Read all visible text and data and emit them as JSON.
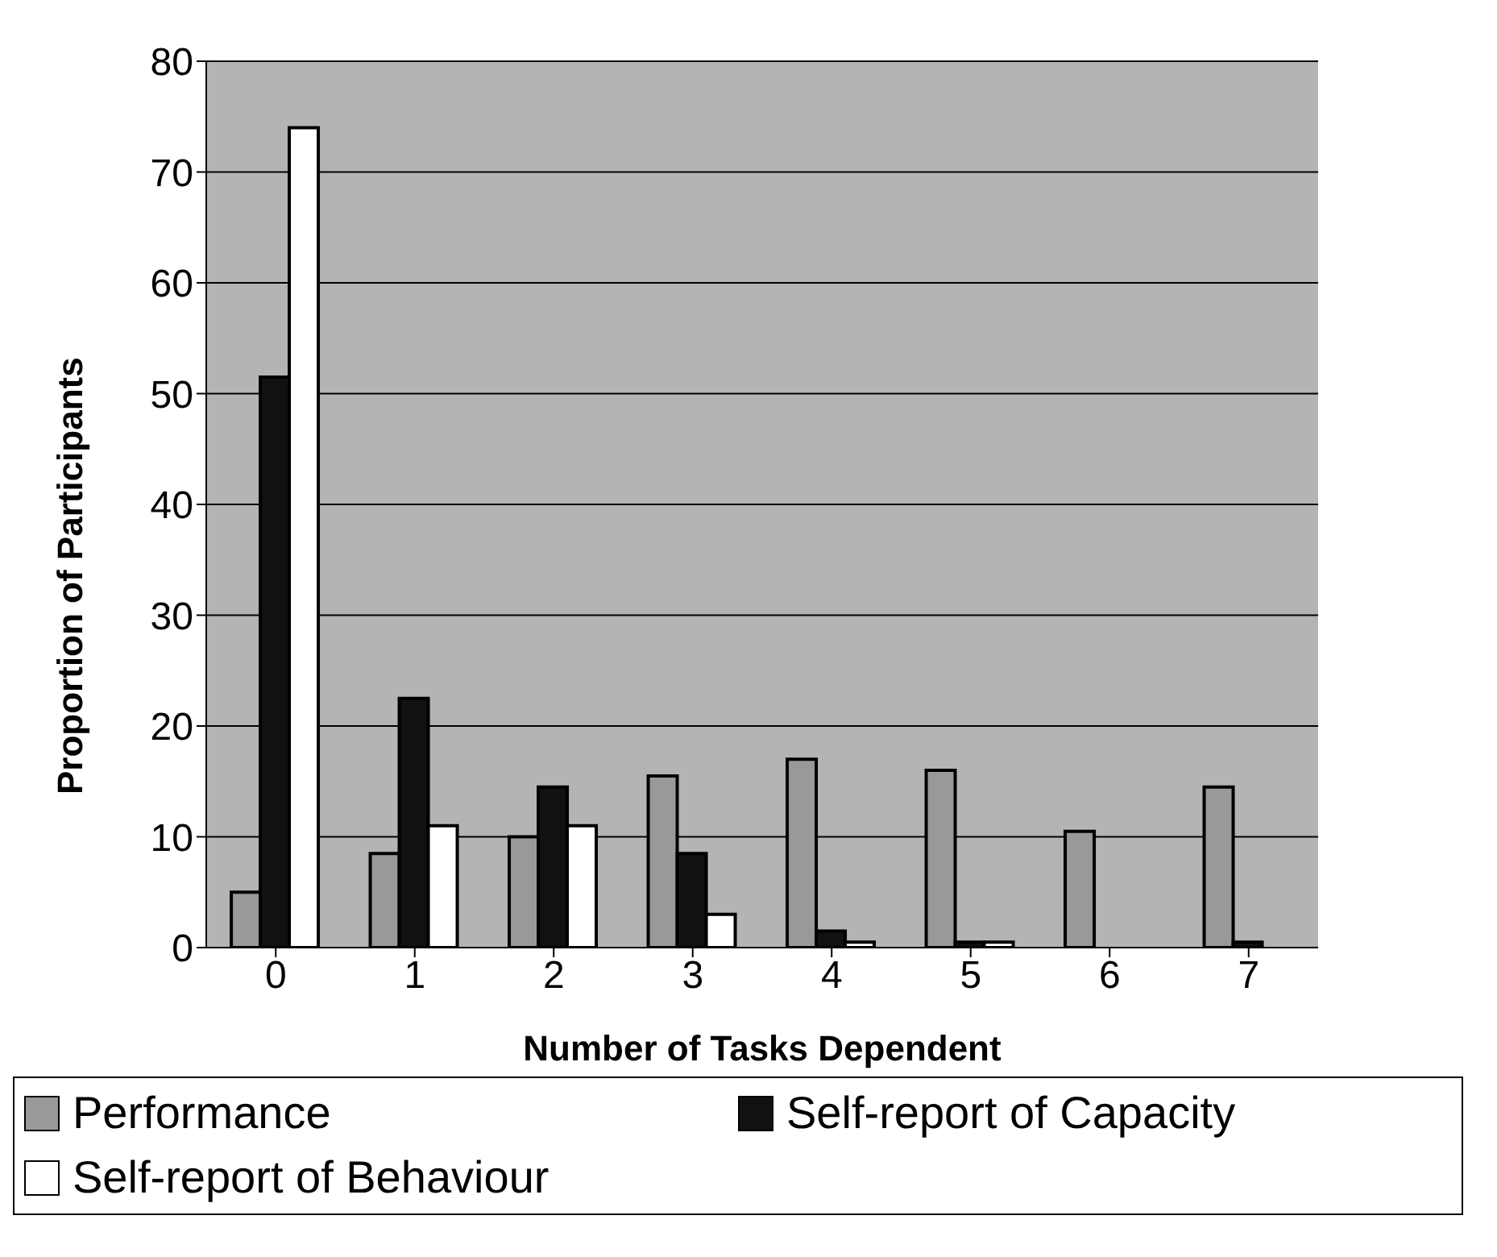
{
  "chart_data": {
    "type": "bar",
    "xlabel": "Number of Tasks Dependent",
    "ylabel": "Proportion of Participants",
    "categories": [
      "0",
      "1",
      "2",
      "3",
      "4",
      "5",
      "6",
      "7"
    ],
    "series": [
      {
        "name": "Performance",
        "color": "#999999",
        "values": [
          5,
          8.5,
          10,
          15.5,
          17,
          16,
          10.5,
          14.5
        ]
      },
      {
        "name": "Self-report of Capacity",
        "color": "#111111",
        "values": [
          51.5,
          22.5,
          14.5,
          8.5,
          1.5,
          0.5,
          0,
          0.5
        ]
      },
      {
        "name": "Self-report of Behaviour",
        "color": "#ffffff",
        "values": [
          74,
          11,
          11,
          3,
          0.5,
          0.5,
          0,
          0
        ]
      }
    ],
    "ylim": [
      0,
      80
    ],
    "yticks": [
      0,
      10,
      20,
      30,
      40,
      50,
      60,
      70,
      80
    ],
    "grid": "y",
    "legend": "bottom"
  }
}
